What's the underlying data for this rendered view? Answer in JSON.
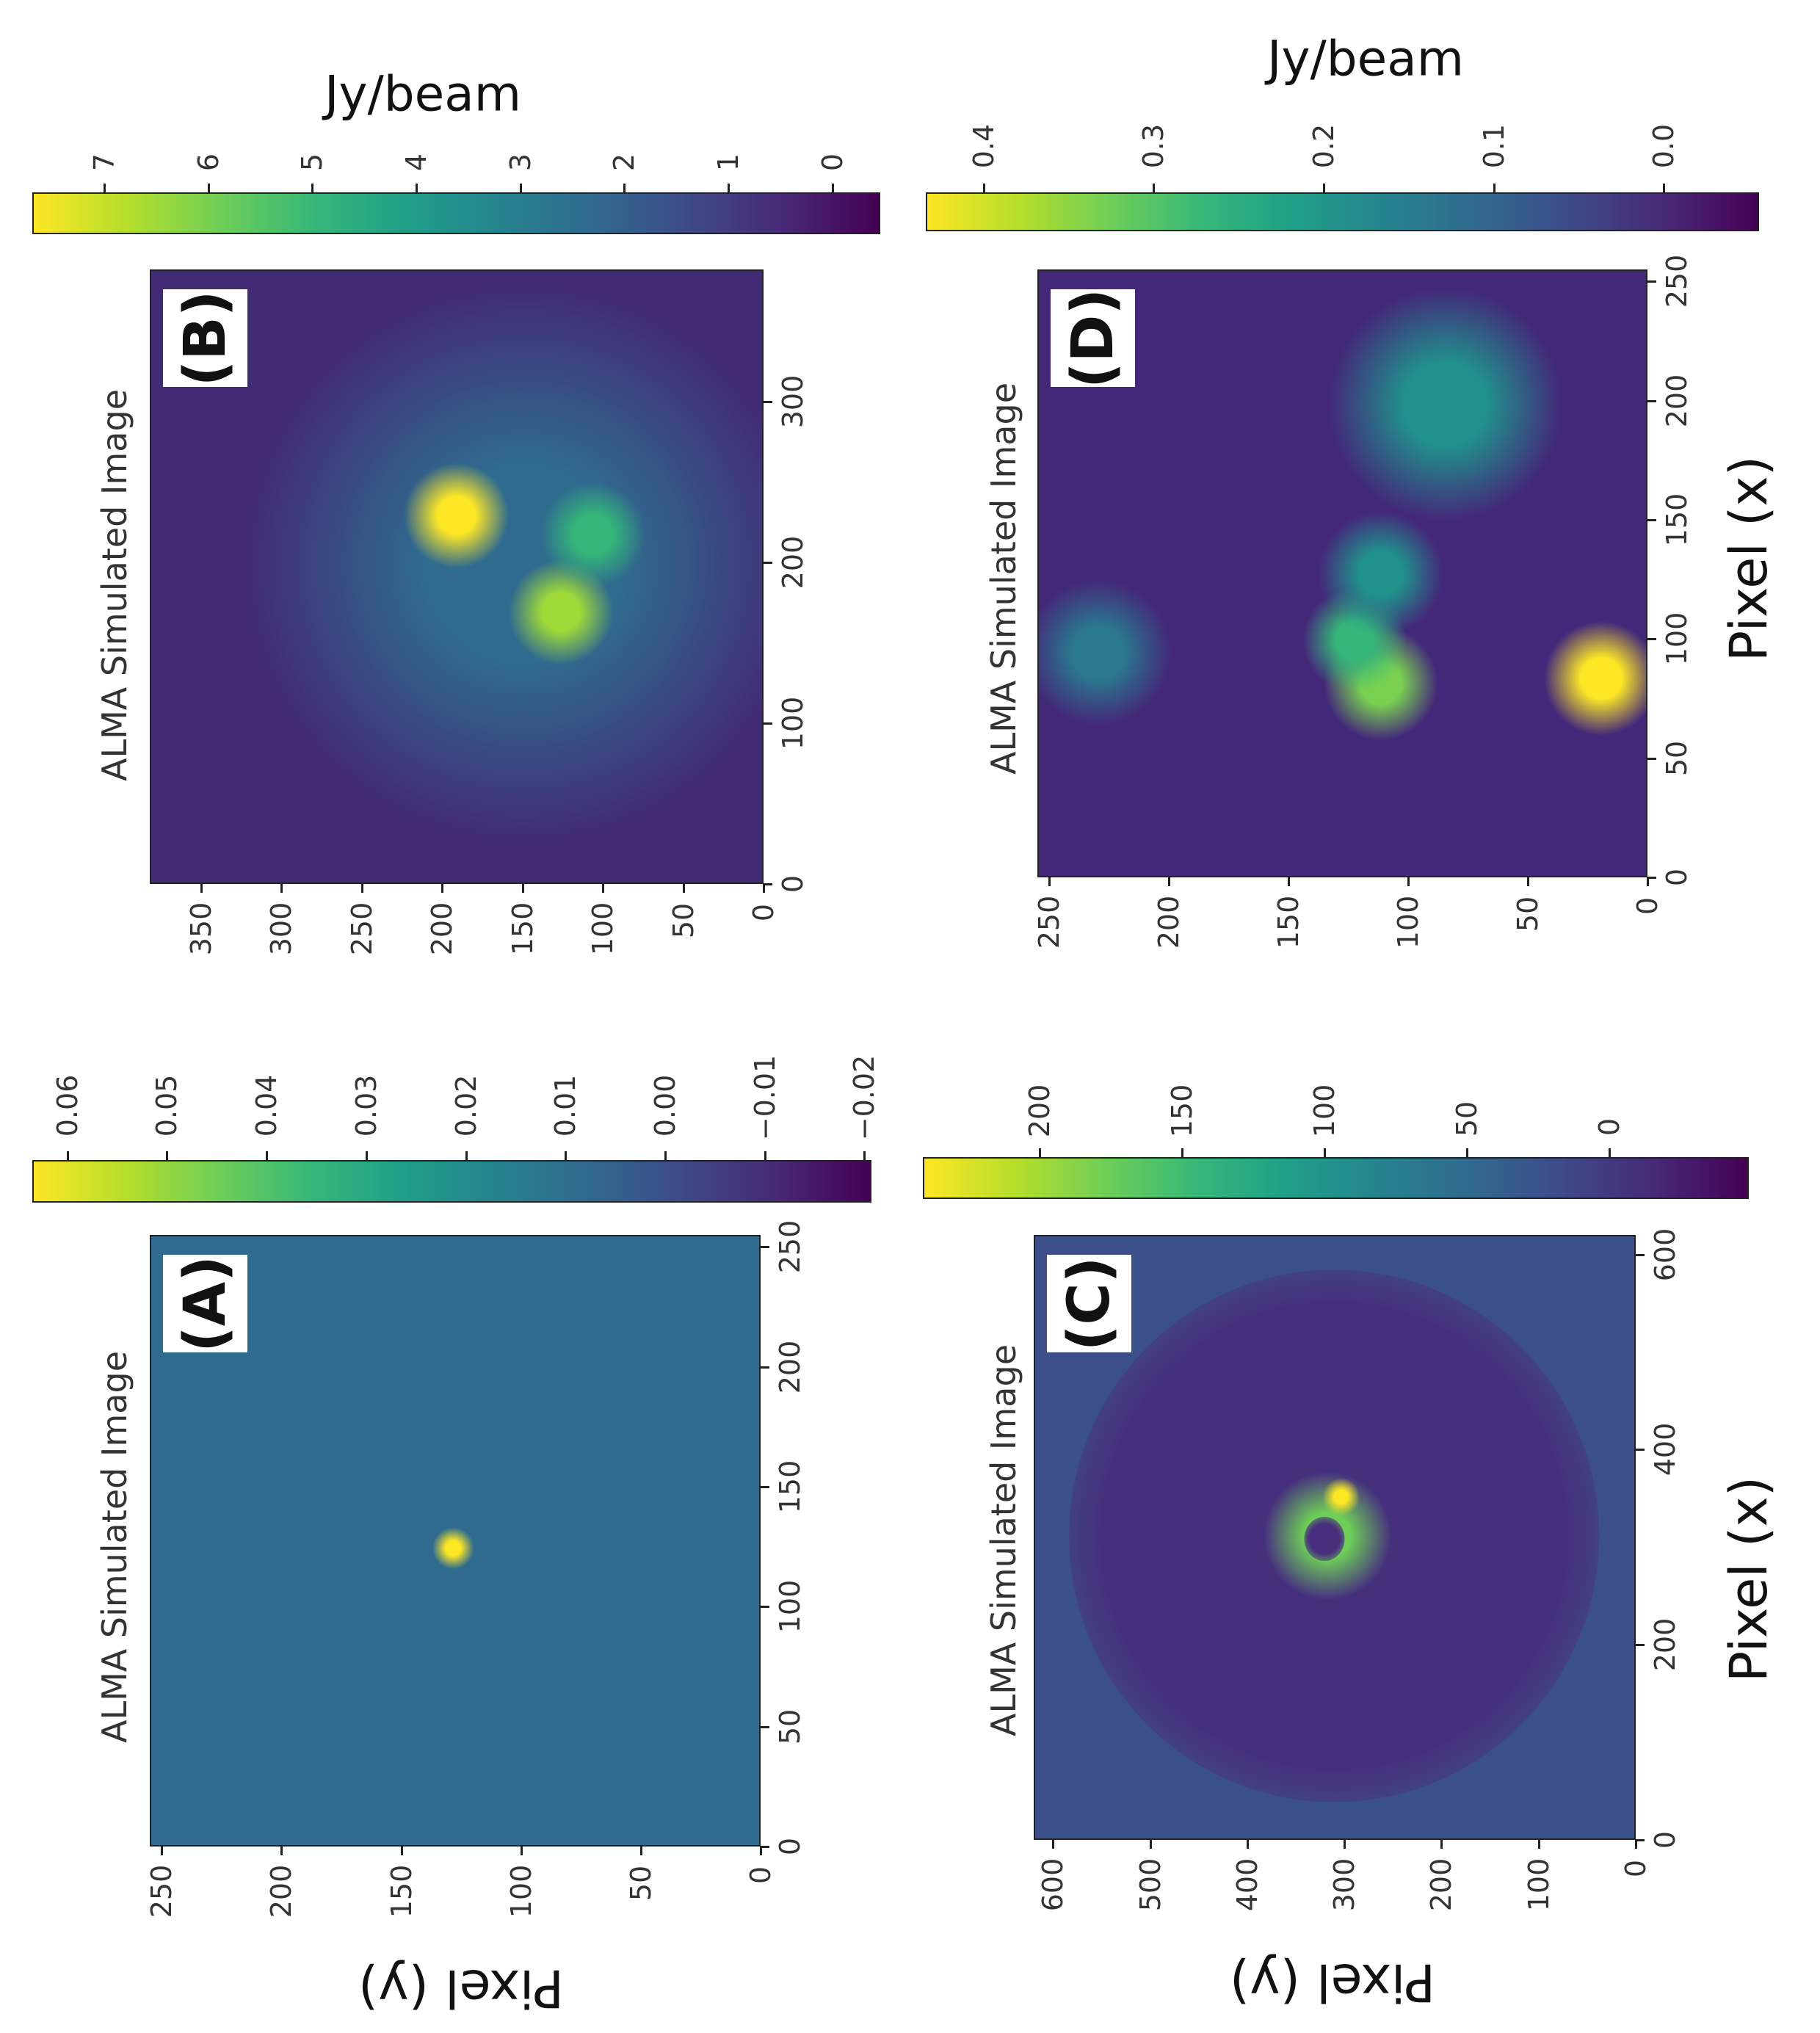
{
  "chart_data": [
    {
      "panel": "(A)",
      "type": "heatmap",
      "title": "ALMA Simulated Image",
      "xlabel": "",
      "ylabel": "Pixel (y)",
      "colorbar_label": "",
      "xlim": [
        0,
        255
      ],
      "ylim": [
        0,
        255
      ],
      "xticks": [
        0,
        50,
        100,
        150,
        200,
        250
      ],
      "yticks": [
        0,
        50,
        100,
        150,
        200,
        250
      ],
      "colorbar_range": [
        -0.0207,
        0.0635
      ],
      "colorbar_ticks": [
        "0.06",
        "0.05",
        "0.04",
        "0.03",
        "0.02",
        "0.01",
        "0.00",
        "−0.01",
        "−0.02"
      ],
      "colorbar_tick_values": [
        0.06,
        0.05,
        0.04,
        0.03,
        0.02,
        0.01,
        0.0,
        -0.01,
        -0.02
      ],
      "background": "#2f6b8e",
      "sources": [
        {
          "x": 125,
          "y": 129,
          "value": 0.063,
          "size": 8,
          "color": "#fde725"
        }
      ]
    },
    {
      "panel": "(B)",
      "type": "heatmap",
      "title": "ALMA Simulated Image",
      "xlabel": "",
      "ylabel": "",
      "colorbar_label": "Jy/beam",
      "xlim": [
        0,
        382
      ],
      "ylim": [
        0,
        382
      ],
      "xticks": [
        0,
        100,
        200,
        300
      ],
      "yticks": [
        0,
        50,
        100,
        150,
        200,
        250,
        300,
        350
      ],
      "colorbar_range": [
        -0.46,
        7.69
      ],
      "colorbar_ticks": [
        "7",
        "6",
        "5",
        "4",
        "3",
        "2",
        "1",
        "0"
      ],
      "colorbar_tick_values": [
        7,
        6,
        5,
        4,
        3,
        2,
        1,
        0
      ],
      "background": "#432a77",
      "sources": [
        {
          "x": 200,
          "y": 150,
          "value": 2,
          "size": 160,
          "color": "#2f6b8e"
        },
        {
          "x": 230,
          "y": 192,
          "value": 7.5,
          "size": 30,
          "color": "#fde725"
        },
        {
          "x": 170,
          "y": 127,
          "value": 5,
          "size": 30,
          "color": "#a0da39"
        },
        {
          "x": 218,
          "y": 107,
          "value": 3.5,
          "size": 30,
          "color": "#35b779"
        }
      ]
    },
    {
      "panel": "(C)",
      "type": "heatmap",
      "title": "ALMA Simulated Image",
      "xlabel": "Pixel (x)",
      "ylabel": "Pixel (y)",
      "colorbar_label": "",
      "xlim": [
        0,
        620
      ],
      "ylim": [
        0,
        620
      ],
      "xticks": [
        0,
        200,
        400,
        600
      ],
      "yticks": [
        0,
        100,
        200,
        300,
        400,
        500,
        600
      ],
      "colorbar_range": [
        -49,
        241
      ],
      "colorbar_ticks": [
        "200",
        "150",
        "100",
        "50",
        "0"
      ],
      "colorbar_tick_values": [
        200,
        150,
        100,
        50,
        0
      ],
      "background": "#3b4f8a",
      "disk_color": "#46307e",
      "sources": [
        {
          "x": 313,
          "y": 319,
          "value": 150,
          "size": 60,
          "color": "#6ece58"
        },
        {
          "x": 353,
          "y": 305,
          "value": 220,
          "size": 18,
          "color": "#fde725"
        }
      ]
    },
    {
      "panel": "(D)",
      "type": "heatmap",
      "title": "ALMA Simulated Image",
      "xlabel": "Pixel (x)",
      "ylabel": "",
      "colorbar_label": "Jy/beam",
      "xlim": [
        0,
        255
      ],
      "ylim": [
        0,
        255
      ],
      "xticks": [
        0,
        50,
        100,
        150,
        200,
        250
      ],
      "yticks": [
        0,
        50,
        100,
        150,
        200,
        250
      ],
      "colorbar_range": [
        -0.056,
        0.434
      ],
      "colorbar_ticks": [
        "0.4",
        "0.3",
        "0.2",
        "0.1",
        "0.0"
      ],
      "colorbar_tick_values": [
        0.4,
        0.3,
        0.2,
        0.1,
        0.0
      ],
      "background": "#43287a",
      "sources": [
        {
          "x": 84,
          "y": 20,
          "value": 0.43,
          "size": 22,
          "color": "#fde725"
        },
        {
          "x": 82,
          "y": 112,
          "value": 0.33,
          "size": 22,
          "color": "#7ad151"
        },
        {
          "x": 100,
          "y": 123,
          "value": 0.25,
          "size": 20,
          "color": "#35b779"
        },
        {
          "x": 128,
          "y": 112,
          "value": 0.18,
          "size": 24,
          "color": "#21918c"
        },
        {
          "x": 199,
          "y": 85,
          "value": 0.17,
          "size": 45,
          "color": "#21918c"
        },
        {
          "x": 95,
          "y": 230,
          "value": 0.13,
          "size": 28,
          "color": "#2a788e"
        }
      ]
    }
  ]
}
